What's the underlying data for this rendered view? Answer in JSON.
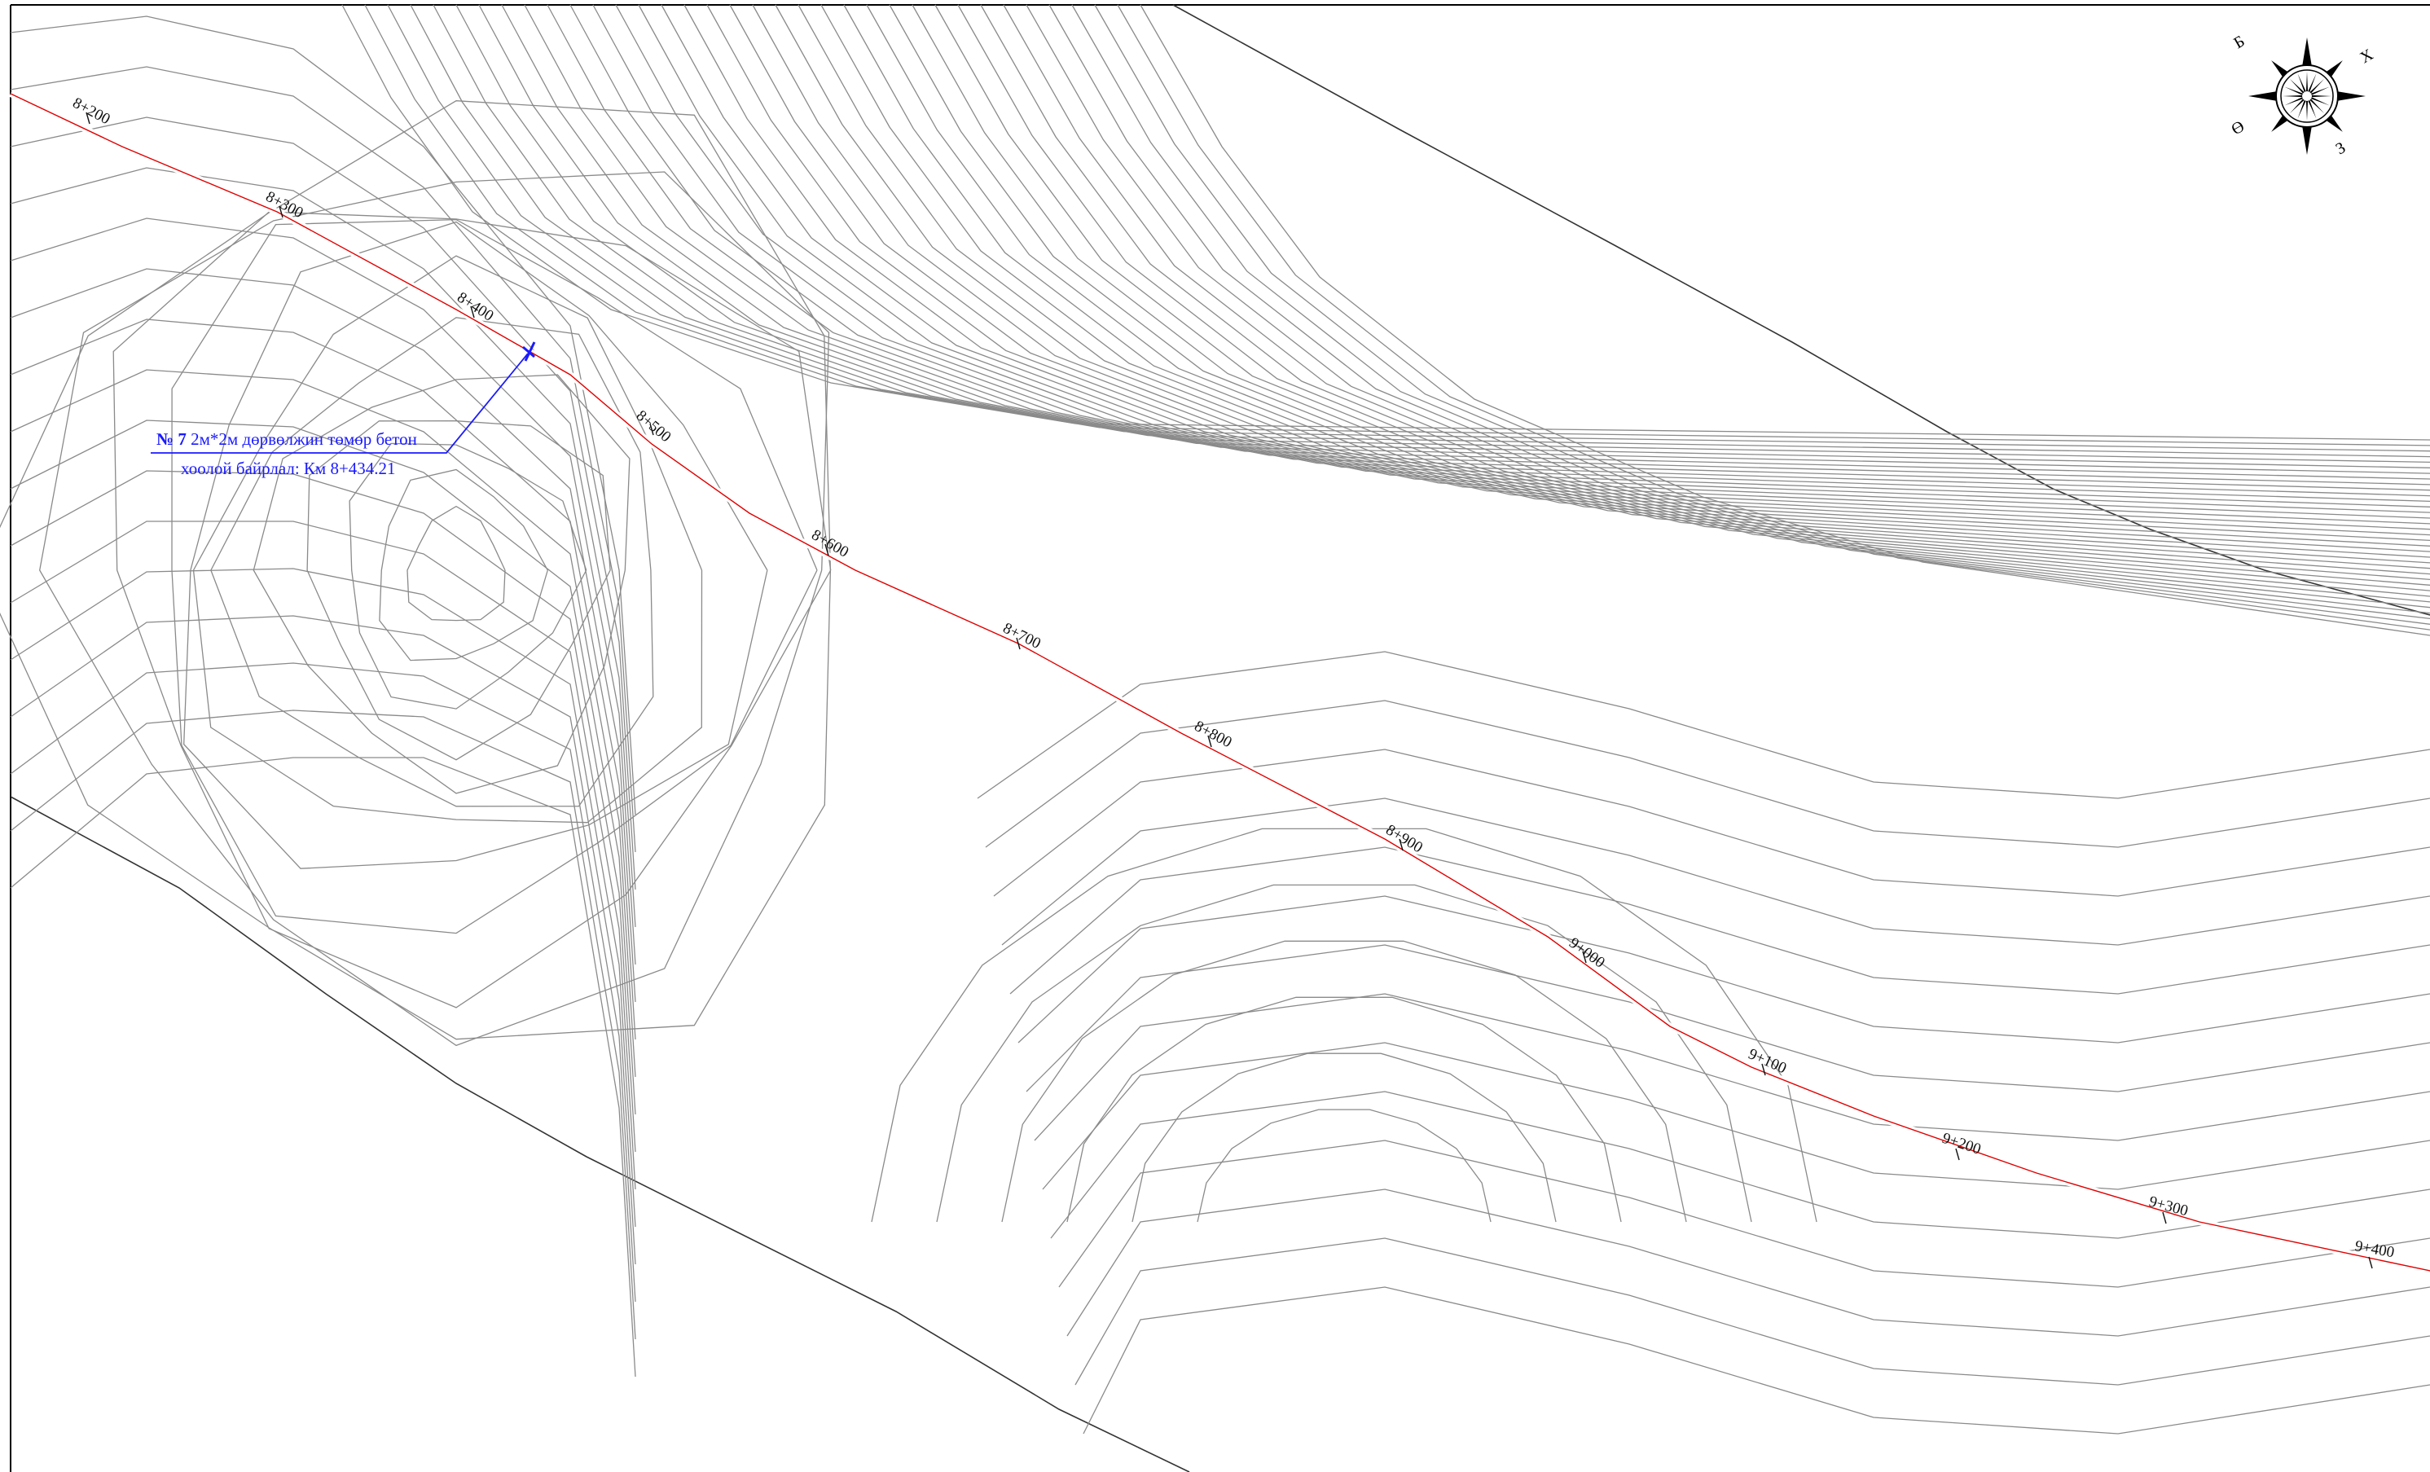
{
  "chainage_labels": [
    {
      "id": "8+200",
      "text": "8+200"
    },
    {
      "id": "8+300",
      "text": "8+300"
    },
    {
      "id": "8+400",
      "text": "8+400"
    },
    {
      "id": "8+500",
      "text": "8+500"
    },
    {
      "id": "8+600",
      "text": "8+600"
    },
    {
      "id": "8+700",
      "text": "8+700"
    },
    {
      "id": "8+800",
      "text": "8+800"
    },
    {
      "id": "8+900",
      "text": "8+900"
    },
    {
      "id": "9+000",
      "text": "9+000"
    },
    {
      "id": "9+100",
      "text": "9+100"
    },
    {
      "id": "9+200",
      "text": "9+200"
    },
    {
      "id": "9+300",
      "text": "9+300"
    },
    {
      "id": "9+400",
      "text": "9+400"
    }
  ],
  "culvert": {
    "number": "№ 7",
    "description": " 2м*2м дөрвөлжин төмөр бетон",
    "line2": "хоолой байрлал: Км 8+434.21"
  },
  "compass": {
    "north": "Х",
    "east": "З",
    "south": "Ө",
    "west": "Б"
  },
  "colors": {
    "road": "#e00000",
    "callout": "#1a1aff",
    "contour": "#8a8a8a"
  }
}
